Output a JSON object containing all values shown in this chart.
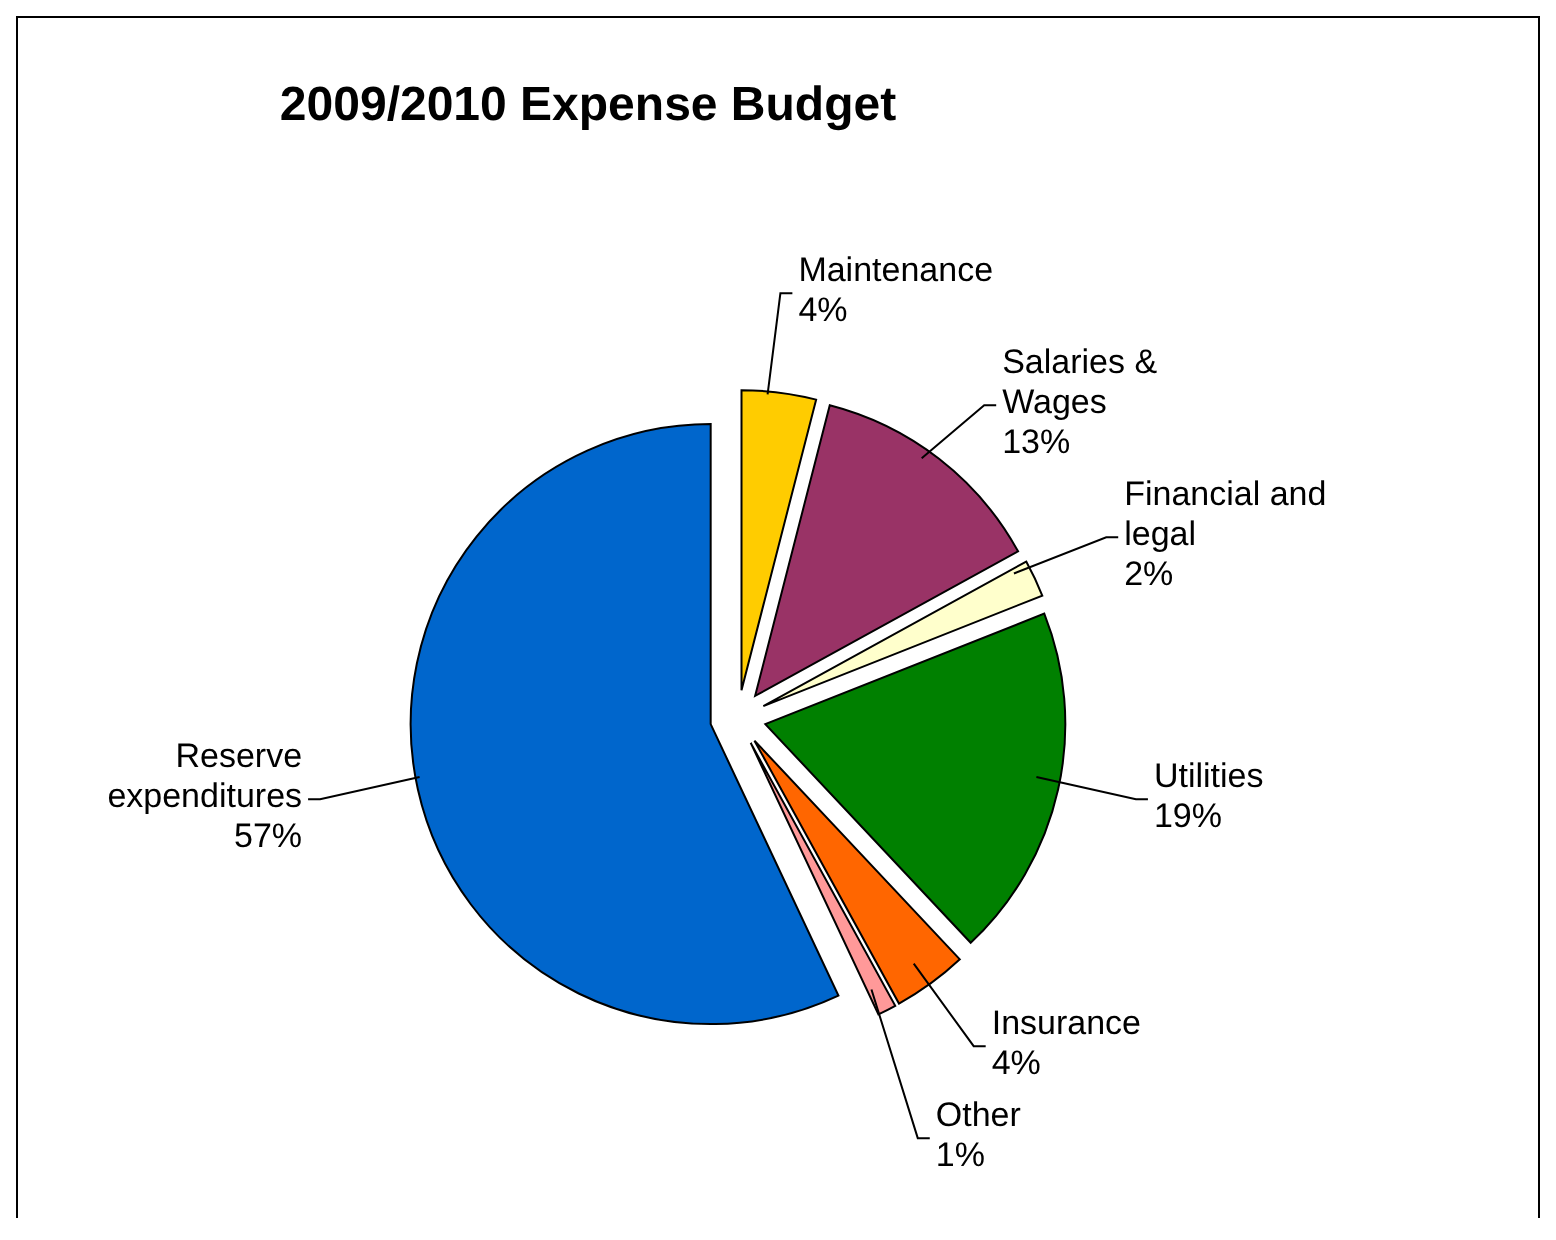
{
  "chart_data": {
    "type": "pie",
    "title": "2009/2010 Expense Budget",
    "categories": [
      "Maintenance",
      "Salaries & Wages",
      "Financial and legal",
      "Utilities",
      "Insurance",
      "Other",
      "Reserve expenditures"
    ],
    "values": [
      4,
      13,
      2,
      19,
      4,
      1,
      57
    ],
    "value_labels": [
      "4%",
      "13%",
      "2%",
      "19%",
      "4%",
      "1%",
      "57%"
    ],
    "colors": [
      "#ffcc00",
      "#993366",
      "#ffffcc",
      "#008000",
      "#ff6600",
      "#ff9999",
      "#0066cc"
    ],
    "legend": false
  }
}
